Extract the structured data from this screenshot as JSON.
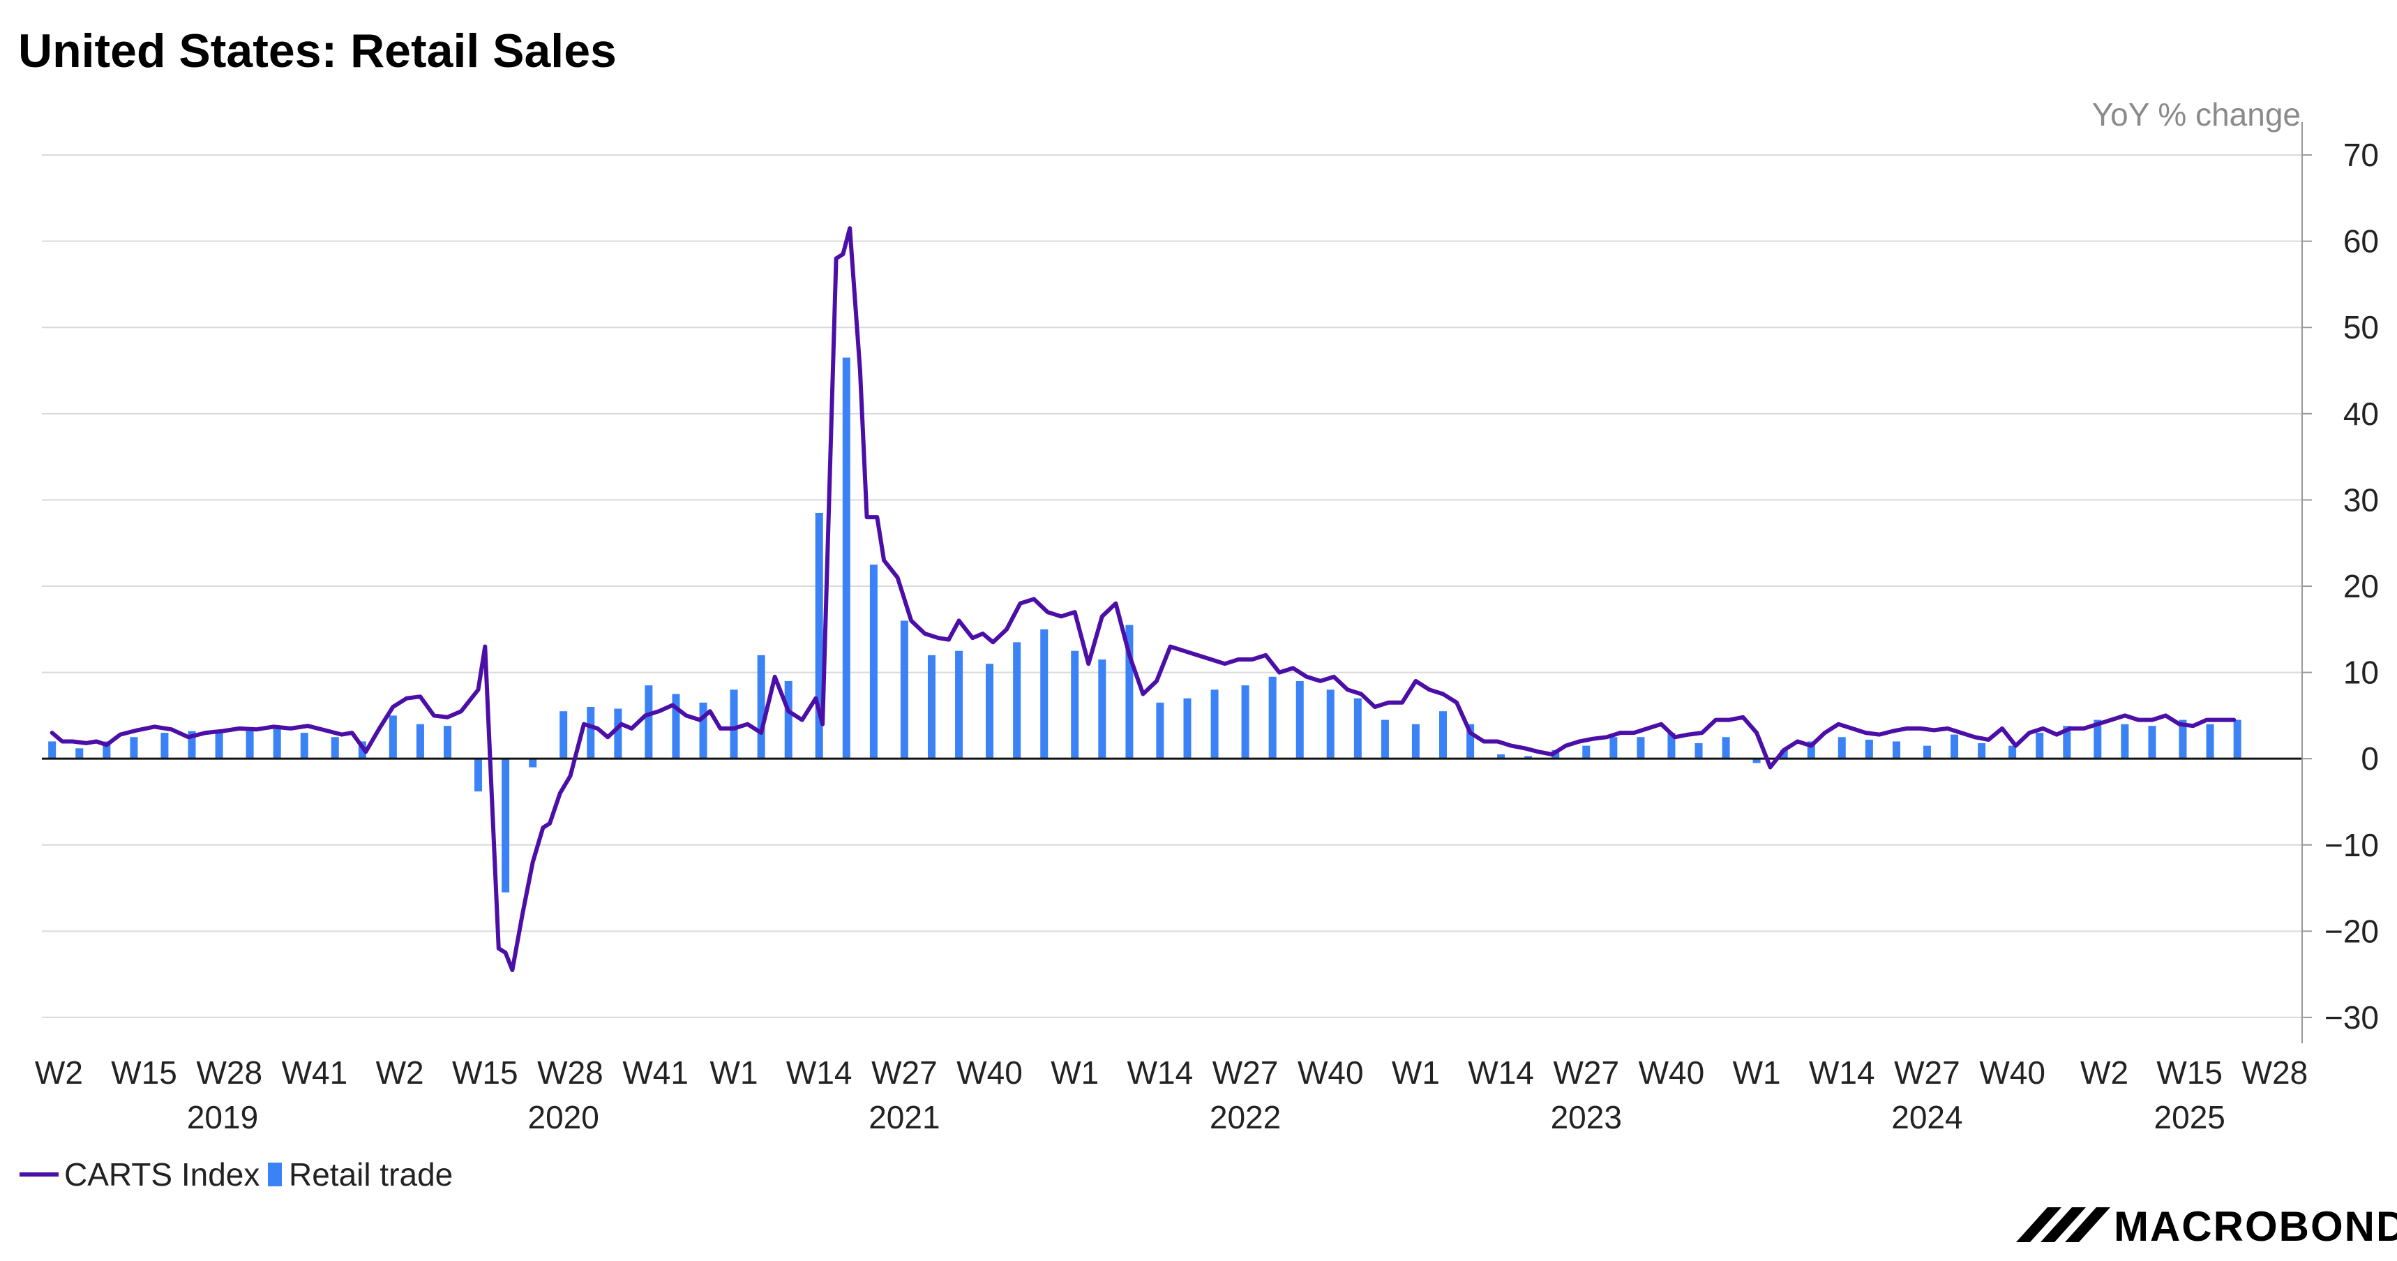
{
  "chart_data": {
    "type": "line",
    "title": "United States: Retail Sales",
    "unit_label": "YoY % change",
    "ylim": [
      -33,
      73
    ],
    "y_ticks": [
      70,
      60,
      50,
      40,
      30,
      20,
      10,
      0,
      -10,
      -20,
      -30
    ],
    "grid": true,
    "legend_position": "bottom-left",
    "x_tick_labels": [
      {
        "label": "W2",
        "x": 2019.02
      },
      {
        "label": "W15",
        "x": 2019.27
      },
      {
        "label": "W28",
        "x": 2019.52
      },
      {
        "label": "W41",
        "x": 2019.77
      },
      {
        "label": "W2",
        "x": 2020.02
      },
      {
        "label": "W15",
        "x": 2020.27
      },
      {
        "label": "W28",
        "x": 2020.52
      },
      {
        "label": "W41",
        "x": 2020.77
      },
      {
        "label": "W1",
        "x": 2021.0
      },
      {
        "label": "W14",
        "x": 2021.25
      },
      {
        "label": "W27",
        "x": 2021.5
      },
      {
        "label": "W40",
        "x": 2021.75
      },
      {
        "label": "W1",
        "x": 2022.0
      },
      {
        "label": "W14",
        "x": 2022.25
      },
      {
        "label": "W27",
        "x": 2022.5
      },
      {
        "label": "W40",
        "x": 2022.75
      },
      {
        "label": "W1",
        "x": 2023.0
      },
      {
        "label": "W14",
        "x": 2023.25
      },
      {
        "label": "W27",
        "x": 2023.5
      },
      {
        "label": "W40",
        "x": 2023.75
      },
      {
        "label": "W1",
        "x": 2024.0
      },
      {
        "label": "W14",
        "x": 2024.25
      },
      {
        "label": "W27",
        "x": 2024.5
      },
      {
        "label": "W40",
        "x": 2024.75
      },
      {
        "label": "W2",
        "x": 2025.02
      },
      {
        "label": "W15",
        "x": 2025.27
      },
      {
        "label": "W28",
        "x": 2025.52
      }
    ],
    "year_labels": [
      {
        "label": "2019",
        "x": 2019.5
      },
      {
        "label": "2020",
        "x": 2020.5
      },
      {
        "label": "2021",
        "x": 2021.5
      },
      {
        "label": "2022",
        "x": 2022.5
      },
      {
        "label": "2023",
        "x": 2023.5
      },
      {
        "label": "2024",
        "x": 2024.5
      },
      {
        "label": "2025",
        "x": 2025.27
      }
    ],
    "series": [
      {
        "name": "CARTS Index",
        "type": "line",
        "color": "#4b0fa8",
        "points": [
          [
            2019.0,
            3.0
          ],
          [
            2019.03,
            2.0
          ],
          [
            2019.06,
            2.0
          ],
          [
            2019.1,
            1.8
          ],
          [
            2019.13,
            2.0
          ],
          [
            2019.16,
            1.6
          ],
          [
            2019.2,
            2.8
          ],
          [
            2019.25,
            3.3
          ],
          [
            2019.3,
            3.7
          ],
          [
            2019.35,
            3.4
          ],
          [
            2019.4,
            2.5
          ],
          [
            2019.45,
            3.0
          ],
          [
            2019.5,
            3.2
          ],
          [
            2019.55,
            3.5
          ],
          [
            2019.6,
            3.4
          ],
          [
            2019.65,
            3.7
          ],
          [
            2019.7,
            3.5
          ],
          [
            2019.75,
            3.8
          ],
          [
            2019.8,
            3.3
          ],
          [
            2019.85,
            2.8
          ],
          [
            2019.88,
            3.0
          ],
          [
            2019.92,
            0.8
          ],
          [
            2019.96,
            3.5
          ],
          [
            2020.0,
            6.0
          ],
          [
            2020.04,
            7.0
          ],
          [
            2020.08,
            7.2
          ],
          [
            2020.12,
            5.0
          ],
          [
            2020.16,
            4.8
          ],
          [
            2020.2,
            5.5
          ],
          [
            2020.25,
            8.0
          ],
          [
            2020.27,
            13.0
          ],
          [
            2020.31,
            -22.0
          ],
          [
            2020.33,
            -22.5
          ],
          [
            2020.35,
            -24.5
          ],
          [
            2020.38,
            -18.0
          ],
          [
            2020.41,
            -12.0
          ],
          [
            2020.44,
            -8.0
          ],
          [
            2020.46,
            -7.5
          ],
          [
            2020.49,
            -4.0
          ],
          [
            2020.52,
            -2.0
          ],
          [
            2020.56,
            4.0
          ],
          [
            2020.6,
            3.5
          ],
          [
            2020.63,
            2.5
          ],
          [
            2020.67,
            4.0
          ],
          [
            2020.7,
            3.5
          ],
          [
            2020.74,
            5.0
          ],
          [
            2020.78,
            5.5
          ],
          [
            2020.82,
            6.2
          ],
          [
            2020.86,
            5.0
          ],
          [
            2020.9,
            4.5
          ],
          [
            2020.93,
            5.5
          ],
          [
            2020.96,
            3.5
          ],
          [
            2021.0,
            3.5
          ],
          [
            2021.04,
            4.0
          ],
          [
            2021.08,
            3.0
          ],
          [
            2021.12,
            9.5
          ],
          [
            2021.16,
            5.5
          ],
          [
            2021.2,
            4.5
          ],
          [
            2021.24,
            7.0
          ],
          [
            2021.26,
            4.0
          ],
          [
            2021.3,
            58.0
          ],
          [
            2021.32,
            58.5
          ],
          [
            2021.34,
            61.5
          ],
          [
            2021.37,
            45.0
          ],
          [
            2021.39,
            28.0
          ],
          [
            2021.42,
            28.0
          ],
          [
            2021.44,
            23.0
          ],
          [
            2021.48,
            21.0
          ],
          [
            2021.52,
            16.0
          ],
          [
            2021.56,
            14.5
          ],
          [
            2021.6,
            14.0
          ],
          [
            2021.63,
            13.8
          ],
          [
            2021.66,
            16.0
          ],
          [
            2021.7,
            14.0
          ],
          [
            2021.73,
            14.5
          ],
          [
            2021.76,
            13.5
          ],
          [
            2021.8,
            15.0
          ],
          [
            2021.84,
            18.0
          ],
          [
            2021.88,
            18.5
          ],
          [
            2021.92,
            17.0
          ],
          [
            2021.96,
            16.5
          ],
          [
            2022.0,
            17.0
          ],
          [
            2022.04,
            11.0
          ],
          [
            2022.08,
            16.5
          ],
          [
            2022.12,
            18.0
          ],
          [
            2022.16,
            12.0
          ],
          [
            2022.2,
            7.5
          ],
          [
            2022.24,
            9.0
          ],
          [
            2022.28,
            13.0
          ],
          [
            2022.32,
            12.5
          ],
          [
            2022.36,
            12.0
          ],
          [
            2022.4,
            11.5
          ],
          [
            2022.44,
            11.0
          ],
          [
            2022.48,
            11.5
          ],
          [
            2022.52,
            11.5
          ],
          [
            2022.56,
            12.0
          ],
          [
            2022.6,
            10.0
          ],
          [
            2022.64,
            10.5
          ],
          [
            2022.68,
            9.5
          ],
          [
            2022.72,
            9.0
          ],
          [
            2022.76,
            9.5
          ],
          [
            2022.8,
            8.0
          ],
          [
            2022.84,
            7.5
          ],
          [
            2022.88,
            6.0
          ],
          [
            2022.92,
            6.5
          ],
          [
            2022.96,
            6.5
          ],
          [
            2023.0,
            9.0
          ],
          [
            2023.04,
            8.0
          ],
          [
            2023.08,
            7.5
          ],
          [
            2023.12,
            6.5
          ],
          [
            2023.16,
            3.0
          ],
          [
            2023.2,
            2.0
          ],
          [
            2023.24,
            2.0
          ],
          [
            2023.28,
            1.5
          ],
          [
            2023.32,
            1.2
          ],
          [
            2023.36,
            0.8
          ],
          [
            2023.4,
            0.5
          ],
          [
            2023.44,
            1.5
          ],
          [
            2023.48,
            2.0
          ],
          [
            2023.52,
            2.3
          ],
          [
            2023.56,
            2.5
          ],
          [
            2023.6,
            3.0
          ],
          [
            2023.64,
            3.0
          ],
          [
            2023.68,
            3.5
          ],
          [
            2023.72,
            4.0
          ],
          [
            2023.76,
            2.5
          ],
          [
            2023.8,
            2.8
          ],
          [
            2023.84,
            3.0
          ],
          [
            2023.88,
            4.5
          ],
          [
            2023.92,
            4.5
          ],
          [
            2023.96,
            4.8
          ],
          [
            2024.0,
            3.0
          ],
          [
            2024.04,
            -1.0
          ],
          [
            2024.08,
            1.0
          ],
          [
            2024.12,
            2.0
          ],
          [
            2024.16,
            1.5
          ],
          [
            2024.2,
            3.0
          ],
          [
            2024.24,
            4.0
          ],
          [
            2024.28,
            3.5
          ],
          [
            2024.32,
            3.0
          ],
          [
            2024.36,
            2.8
          ],
          [
            2024.4,
            3.2
          ],
          [
            2024.44,
            3.5
          ],
          [
            2024.48,
            3.5
          ],
          [
            2024.52,
            3.3
          ],
          [
            2024.56,
            3.5
          ],
          [
            2024.6,
            3.0
          ],
          [
            2024.64,
            2.5
          ],
          [
            2024.68,
            2.2
          ],
          [
            2024.72,
            3.5
          ],
          [
            2024.76,
            1.5
          ],
          [
            2024.8,
            3.0
          ],
          [
            2024.84,
            3.5
          ],
          [
            2024.88,
            2.8
          ],
          [
            2024.92,
            3.5
          ],
          [
            2024.96,
            3.5
          ],
          [
            2025.0,
            4.0
          ],
          [
            2025.04,
            4.5
          ],
          [
            2025.08,
            5.0
          ],
          [
            2025.12,
            4.5
          ],
          [
            2025.16,
            4.5
          ],
          [
            2025.2,
            5.0
          ],
          [
            2025.24,
            4.0
          ],
          [
            2025.28,
            3.8
          ],
          [
            2025.32,
            4.5
          ],
          [
            2025.36,
            4.5
          ],
          [
            2025.4,
            4.5
          ]
        ]
      },
      {
        "name": "Retail trade",
        "type": "bar",
        "color": "#3b82f6",
        "points": [
          [
            2019.0,
            2.0
          ],
          [
            2019.08,
            1.2
          ],
          [
            2019.16,
            2.0
          ],
          [
            2019.24,
            2.5
          ],
          [
            2019.33,
            3.0
          ],
          [
            2019.41,
            3.2
          ],
          [
            2019.49,
            3.0
          ],
          [
            2019.58,
            3.2
          ],
          [
            2019.66,
            3.5
          ],
          [
            2019.74,
            3.0
          ],
          [
            2019.83,
            2.5
          ],
          [
            2019.91,
            2.0
          ],
          [
            2020.0,
            5.0
          ],
          [
            2020.08,
            4.0
          ],
          [
            2020.16,
            3.8
          ],
          [
            2020.25,
            -3.8
          ],
          [
            2020.33,
            -15.5
          ],
          [
            2020.41,
            -1.0
          ],
          [
            2020.5,
            5.5
          ],
          [
            2020.58,
            6.0
          ],
          [
            2020.66,
            5.8
          ],
          [
            2020.75,
            8.5
          ],
          [
            2020.83,
            7.5
          ],
          [
            2020.91,
            6.5
          ],
          [
            2021.0,
            8.0
          ],
          [
            2021.08,
            12.0
          ],
          [
            2021.16,
            9.0
          ],
          [
            2021.25,
            28.5
          ],
          [
            2021.33,
            46.5
          ],
          [
            2021.41,
            22.5
          ],
          [
            2021.5,
            16.0
          ],
          [
            2021.58,
            12.0
          ],
          [
            2021.66,
            12.5
          ],
          [
            2021.75,
            11.0
          ],
          [
            2021.83,
            13.5
          ],
          [
            2021.91,
            15.0
          ],
          [
            2022.0,
            12.5
          ],
          [
            2022.08,
            11.5
          ],
          [
            2022.16,
            15.5
          ],
          [
            2022.25,
            6.5
          ],
          [
            2022.33,
            7.0
          ],
          [
            2022.41,
            8.0
          ],
          [
            2022.5,
            8.5
          ],
          [
            2022.58,
            9.5
          ],
          [
            2022.66,
            9.0
          ],
          [
            2022.75,
            8.0
          ],
          [
            2022.83,
            7.0
          ],
          [
            2022.91,
            4.5
          ],
          [
            2023.0,
            4.0
          ],
          [
            2023.08,
            5.5
          ],
          [
            2023.16,
            4.0
          ],
          [
            2023.25,
            0.5
          ],
          [
            2023.33,
            0.3
          ],
          [
            2023.41,
            1.0
          ],
          [
            2023.5,
            1.5
          ],
          [
            2023.58,
            2.5
          ],
          [
            2023.66,
            2.5
          ],
          [
            2023.75,
            3.0
          ],
          [
            2023.83,
            1.8
          ],
          [
            2023.91,
            2.5
          ],
          [
            2024.0,
            -0.5
          ],
          [
            2024.08,
            1.0
          ],
          [
            2024.16,
            2.0
          ],
          [
            2024.25,
            2.5
          ],
          [
            2024.33,
            2.2
          ],
          [
            2024.41,
            2.0
          ],
          [
            2024.5,
            1.5
          ],
          [
            2024.58,
            2.8
          ],
          [
            2024.66,
            1.8
          ],
          [
            2024.75,
            1.5
          ],
          [
            2024.83,
            3.0
          ],
          [
            2024.91,
            3.8
          ],
          [
            2025.0,
            4.5
          ],
          [
            2025.08,
            4.0
          ],
          [
            2025.16,
            3.8
          ],
          [
            2025.25,
            4.5
          ],
          [
            2025.33,
            4.0
          ],
          [
            2025.41,
            4.5
          ]
        ]
      }
    ]
  },
  "legend": [
    {
      "label": "CARTS Index",
      "kind": "line",
      "color": "#4b0fa8"
    },
    {
      "label": "Retail trade",
      "kind": "bar",
      "color": "#3b82f6"
    }
  ],
  "brand": {
    "logo_text": "MACROBOND"
  }
}
